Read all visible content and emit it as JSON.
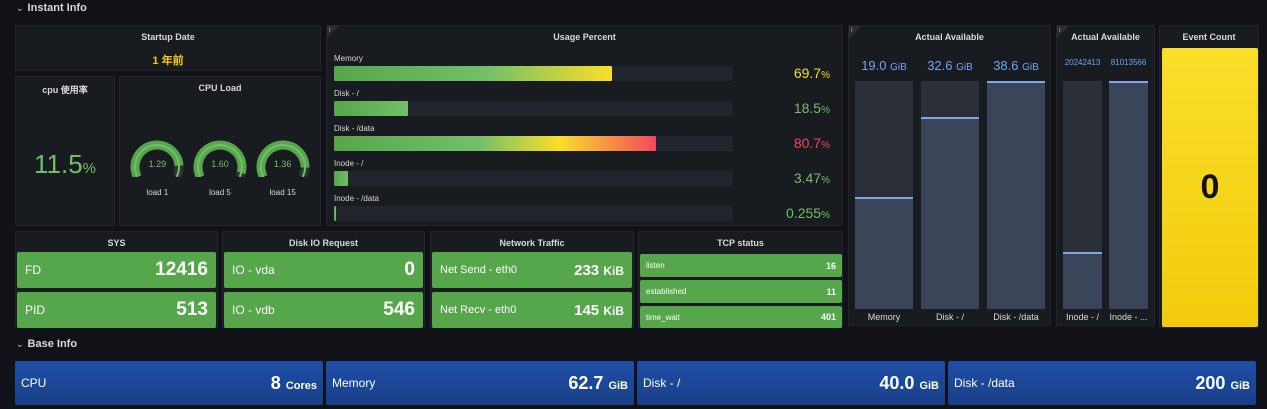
{
  "rows": {
    "instant": "Instant Info",
    "base": "Base Info"
  },
  "startup": {
    "title": "Startup Date",
    "value": "1 年前",
    "color": "#f2cc0c"
  },
  "cpu_usage": {
    "title": "cpu 使用率",
    "value": "11.5",
    "unit": "%",
    "color": "#73bf69"
  },
  "cpu_load": {
    "title": "CPU Load",
    "gauges": [
      {
        "value": "1.29",
        "label": "load 1",
        "fraction": 0.32
      },
      {
        "value": "1.60",
        "label": "load 5",
        "fraction": 0.4
      },
      {
        "value": "1.36",
        "label": "load 15",
        "fraction": 0.34
      }
    ]
  },
  "usage": {
    "title": "Usage Percent",
    "info": "i",
    "bars": [
      {
        "label": "Memory",
        "value": "69.7",
        "unit": "%",
        "fraction": 0.697,
        "color": "#fade2a",
        "grad": "linear-gradient(90deg,#56a64b,#73bf69 55%,#fade2a)"
      },
      {
        "label": "Disk - /",
        "value": "18.5",
        "unit": "%",
        "fraction": 0.185,
        "color": "#73bf69",
        "grad": "linear-gradient(90deg,#56a64b,#73bf69)"
      },
      {
        "label": "Disk - /data",
        "value": "80.7",
        "unit": "%",
        "fraction": 0.807,
        "color": "#f2495c",
        "grad": "linear-gradient(90deg,#56a64b,#73bf69 45%,#fade2a 70%,#f2495c)"
      },
      {
        "label": "Inode - /",
        "value": "3.47",
        "unit": "%",
        "fraction": 0.035,
        "color": "#73bf69",
        "grad": "linear-gradient(90deg,#56a64b,#73bf69)"
      },
      {
        "label": "Inode - /data",
        "value": "0.255",
        "unit": "%",
        "fraction": 0.004,
        "color": "#73bf69",
        "grad": "linear-gradient(90deg,#56a64b,#73bf69)"
      }
    ]
  },
  "avail1": {
    "title": "Actual Available",
    "info": "i",
    "cols": [
      {
        "value": "19.0",
        "unit": "GiB",
        "label": "Memory",
        "fraction": 0.49
      },
      {
        "value": "32.6",
        "unit": "GiB",
        "label": "Disk - /",
        "fraction": 0.84
      },
      {
        "value": "38.6",
        "unit": "GiB",
        "label": "Disk - /data",
        "fraction": 1.0
      }
    ]
  },
  "avail2": {
    "title": "Actual Available",
    "info": "i",
    "cols": [
      {
        "value": "20242413",
        "label": "Inode - /",
        "fraction": 0.25
      },
      {
        "value": "81013566",
        "label": "Inode - ...",
        "fraction": 1.0
      }
    ]
  },
  "event": {
    "title": "Event Count",
    "value": "0"
  },
  "sys": {
    "title": "SYS",
    "items": [
      {
        "label": "FD",
        "value": "12416"
      },
      {
        "label": "PID",
        "value": "513"
      }
    ]
  },
  "diskio": {
    "title": "Disk IO Request",
    "items": [
      {
        "label": "IO - vda",
        "value": "0"
      },
      {
        "label": "IO - vdb",
        "value": "546"
      }
    ]
  },
  "net": {
    "title": "Network Traffic",
    "items": [
      {
        "label": "Net Send - eth0",
        "value": "233",
        "unit": "KiB"
      },
      {
        "label": "Net Recv - eth0",
        "value": "145",
        "unit": "KiB"
      }
    ]
  },
  "tcp": {
    "title": "TCP status",
    "items": [
      {
        "label": "listen",
        "value": "16"
      },
      {
        "label": "established",
        "value": "11"
      },
      {
        "label": "time_wait",
        "value": "401"
      }
    ]
  },
  "base": [
    {
      "label": "CPU",
      "value": "8",
      "unit": "Cores"
    },
    {
      "label": "Memory",
      "value": "62.7",
      "unit": "GiB"
    },
    {
      "label": "Disk - /",
      "value": "40.0",
      "unit": "GiB"
    },
    {
      "label": "Disk - /data",
      "value": "200",
      "unit": "GiB"
    }
  ]
}
